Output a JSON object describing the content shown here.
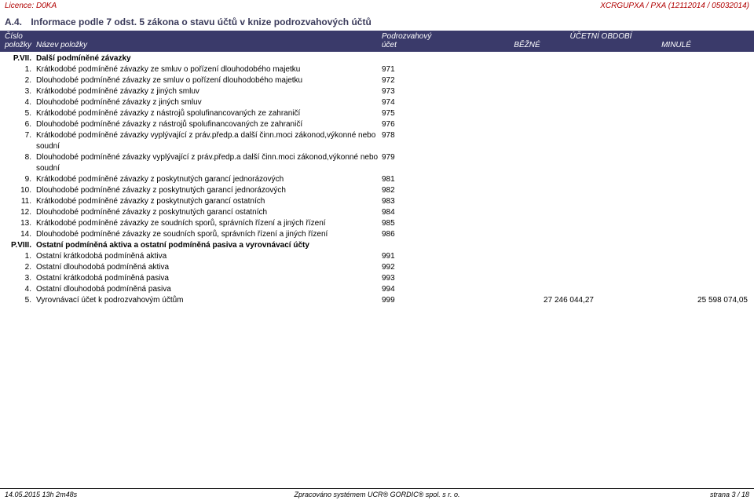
{
  "top": {
    "left": "Licence: D0KA",
    "right": "XCRGUPXA / PXA (12112014 / 05032014)"
  },
  "section": {
    "prefix": "A.4.",
    "title": "Informace podle 7 odst. 5 zákona o stavu účtů v knize podrozvahových účtů"
  },
  "header": {
    "cislo": "Číslo",
    "polozky": "položky",
    "nazev": "Název položky",
    "podrozvahovy": "Podrozvahový",
    "ucet": "účet",
    "ucetni_obdobi": "ÚČETNÍ OBDOBÍ",
    "bezne": "BĚŽNÉ",
    "minule": "MINULÉ"
  },
  "groups": [
    {
      "code": "P.VII.",
      "label": "Další podmíněné závazky",
      "rows": [
        {
          "n": "1.",
          "item": "Krátkodobé podmíněné závazky ze smluv o pořízení dlouhodobého majetku",
          "acct": "971"
        },
        {
          "n": "2.",
          "item": "Dlouhodobé podmíněné závazky ze smluv o pořízení dlouhodobého majetku",
          "acct": "972"
        },
        {
          "n": "3.",
          "item": "Krátkodobé podmíněné závazky z jiných smluv",
          "acct": "973"
        },
        {
          "n": "4.",
          "item": "Dlouhodobé podmíněné závazky z jiných smluv",
          "acct": "974"
        },
        {
          "n": "5.",
          "item": "Krátkodobé podmíněné závazky z nástrojů spolufinancovaných ze zahraničí",
          "acct": "975"
        },
        {
          "n": "6.",
          "item": "Dlouhodobé podmíněné závazky z nástrojů spolufinancovaných ze zahraničí",
          "acct": "976"
        },
        {
          "n": "7.",
          "item": "Krátkodobé podmíněné závazky vyplývající z práv.předp.a další činn.moci zákonod,výkonné nebo soudní",
          "acct": "978"
        },
        {
          "n": "8.",
          "item": "Dlouhodobé podmíněné závazky vyplývající z práv.předp.a další činn.moci zákonod,výkonné nebo soudní",
          "acct": "979"
        },
        {
          "n": "9.",
          "item": "Krátkodobé podmíněné závazky z poskytnutých garancí jednorázových",
          "acct": "981"
        },
        {
          "n": "10.",
          "item": "Dlouhodobé podmíněné závazky z poskytnutých garancí jednorázových",
          "acct": "982"
        },
        {
          "n": "11.",
          "item": "Krátkodobé podmíněné závazky z poskytnutých garancí ostatních",
          "acct": "983"
        },
        {
          "n": "12.",
          "item": "Dlouhodobé podmíněné závazky z poskytnutých garancí ostatních",
          "acct": "984"
        },
        {
          "n": "13.",
          "item": "Krátkodobé podmíněné závazky ze soudních sporů, správních řízení a jiných řízení",
          "acct": "985"
        },
        {
          "n": "14.",
          "item": "Dlouhodobé podmíněné závazky ze soudních sporů, správních řízení a jiných řízení",
          "acct": "986"
        }
      ]
    },
    {
      "code": "P.VIII.",
      "label": "Ostatní podmíněná aktiva a ostatní podmíněná pasiva a vyrovnávací účty",
      "rows": [
        {
          "n": "1.",
          "item": "Ostatní krátkodobá podmíněná aktiva",
          "acct": "991"
        },
        {
          "n": "2.",
          "item": "Ostatní dlouhodobá podmíněná aktiva",
          "acct": "992"
        },
        {
          "n": "3.",
          "item": "Ostatní krátkodobá podmíněná pasiva",
          "acct": "993"
        },
        {
          "n": "4.",
          "item": "Ostatní dlouhodobá podmíněná pasiva",
          "acct": "994"
        },
        {
          "n": "5.",
          "item": "Vyrovnávací účet k podrozvahovým účtům",
          "acct": "999",
          "v1": "27 246 044,27",
          "v2": "25 598 074,05"
        }
      ]
    }
  ],
  "footer": {
    "left": "14.05.2015 13h 2m48s",
    "center": "Zpracováno systémem  UCR® GORDIC® spol. s  r. o.",
    "right": "strana 3 / 18"
  }
}
